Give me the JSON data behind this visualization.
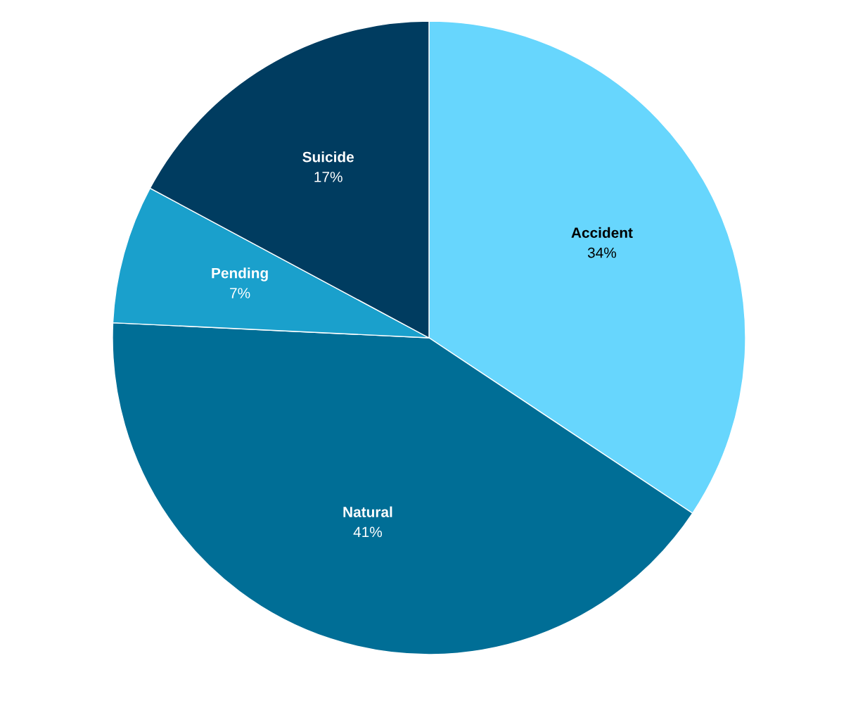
{
  "chart_data": {
    "type": "pie",
    "categories": [
      "Accident",
      "Natural",
      "Pending",
      "Suicide"
    ],
    "values": [
      34,
      41,
      7,
      17
    ],
    "value_labels": [
      "34%",
      "41%",
      "7%",
      "17%"
    ],
    "colors": [
      "#67d6fd",
      "#006e96",
      "#1aa0cc",
      "#003c60"
    ]
  }
}
